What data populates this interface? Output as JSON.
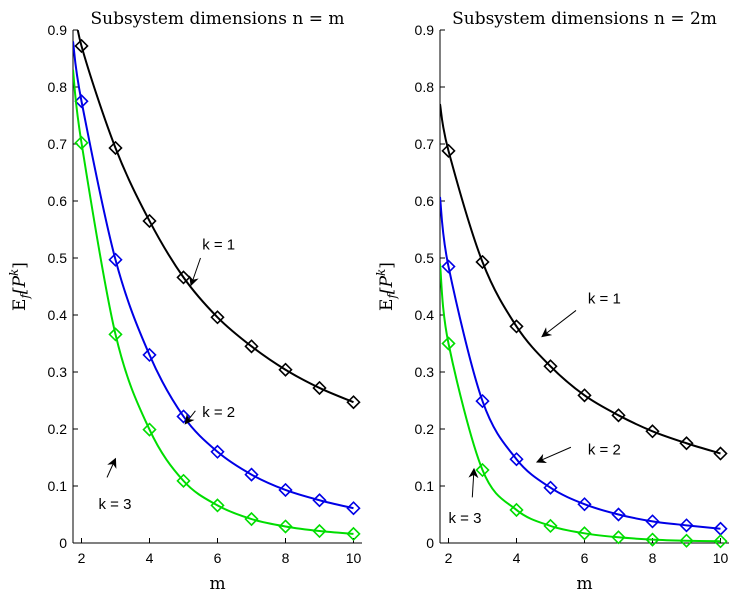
{
  "chart_data": [
    {
      "type": "line",
      "title": "Subsystem dimensions n = m",
      "xlabel": "m",
      "ylabel_main": "E",
      "ylabel_sub": "f",
      "ylabel_bracket": "[P",
      "ylabel_sup": "k",
      "ylabel_close": "]",
      "xlim": [
        1.75,
        10.25
      ],
      "ylim": [
        0,
        0.9
      ],
      "xticks": [
        2,
        4,
        6,
        8,
        10
      ],
      "yticks": [
        0,
        0.1,
        0.2,
        0.3,
        0.4,
        0.5,
        0.6,
        0.7,
        0.8,
        0.9
      ],
      "grid": false,
      "x": [
        2,
        3,
        4,
        5,
        6,
        7,
        8,
        9,
        10
      ],
      "series": [
        {
          "name": "k = 1",
          "color": "#000000",
          "curve_start": 0.96,
          "values": [
            0.872,
            0.693,
            0.565,
            0.466,
            0.396,
            0.345,
            0.304,
            0.272,
            0.247
          ]
        },
        {
          "name": "k = 2",
          "color": "#0000e6",
          "curve_start": 0.88,
          "values": [
            0.775,
            0.497,
            0.33,
            0.222,
            0.16,
            0.12,
            0.093,
            0.075,
            0.061
          ]
        },
        {
          "name": "k = 3",
          "color": "#00dd00",
          "curve_start": 0.83,
          "values": [
            0.702,
            0.366,
            0.199,
            0.109,
            0.066,
            0.042,
            0.029,
            0.021,
            0.016
          ]
        }
      ],
      "annotations": [
        {
          "text": "k = 1",
          "tx": 5.55,
          "ty": 0.515,
          "ax1": 5.5,
          "ay1": 0.5,
          "ax2": 5.22,
          "ay2": 0.452
        },
        {
          "text": "k = 2",
          "tx": 5.55,
          "ty": 0.221,
          "ax1": 5.35,
          "ay1": 0.232,
          "ax2": 5.05,
          "ay2": 0.209
        },
        {
          "text": "k = 3",
          "tx": 2.5,
          "ty": 0.06,
          "ax1": 2.75,
          "ay1": 0.115,
          "ax2": 3.0,
          "ay2": 0.148
        }
      ]
    },
    {
      "type": "line",
      "title": "Subsystem dimensions n = 2m",
      "xlabel": "m",
      "ylabel_main": "E",
      "ylabel_sub": "f",
      "ylabel_bracket": "[P",
      "ylabel_sup": "k",
      "ylabel_close": "]",
      "xlim": [
        1.75,
        10.25
      ],
      "ylim": [
        0,
        0.9
      ],
      "xticks": [
        2,
        4,
        6,
        8,
        10
      ],
      "yticks": [
        0,
        0.1,
        0.2,
        0.3,
        0.4,
        0.5,
        0.6,
        0.7,
        0.8,
        0.9
      ],
      "grid": false,
      "x": [
        2,
        3,
        4,
        5,
        6,
        7,
        8,
        9,
        10
      ],
      "series": [
        {
          "name": "k = 1",
          "color": "#000000",
          "curve_start": 0.77,
          "values": [
            0.688,
            0.493,
            0.38,
            0.31,
            0.259,
            0.224,
            0.196,
            0.175,
            0.157
          ]
        },
        {
          "name": "k = 2",
          "color": "#0000e6",
          "curve_start": 0.607,
          "values": [
            0.485,
            0.249,
            0.147,
            0.097,
            0.068,
            0.05,
            0.038,
            0.031,
            0.025
          ]
        },
        {
          "name": "k = 3",
          "color": "#00dd00",
          "curve_start": 0.49,
          "values": [
            0.35,
            0.128,
            0.058,
            0.03,
            0.017,
            0.01,
            0.006,
            0.004,
            0.003
          ]
        }
      ],
      "annotations": [
        {
          "text": "k = 1",
          "tx": 6.1,
          "ty": 0.42,
          "ax1": 5.75,
          "ay1": 0.408,
          "ax2": 4.75,
          "ay2": 0.362
        },
        {
          "text": "k = 2",
          "tx": 6.1,
          "ty": 0.155,
          "ax1": 5.6,
          "ay1": 0.168,
          "ax2": 4.6,
          "ay2": 0.142
        },
        {
          "text": "k = 3",
          "tx": 2.0,
          "ty": 0.035,
          "ax1": 2.7,
          "ay1": 0.08,
          "ax2": 2.75,
          "ay2": 0.13
        }
      ]
    }
  ]
}
